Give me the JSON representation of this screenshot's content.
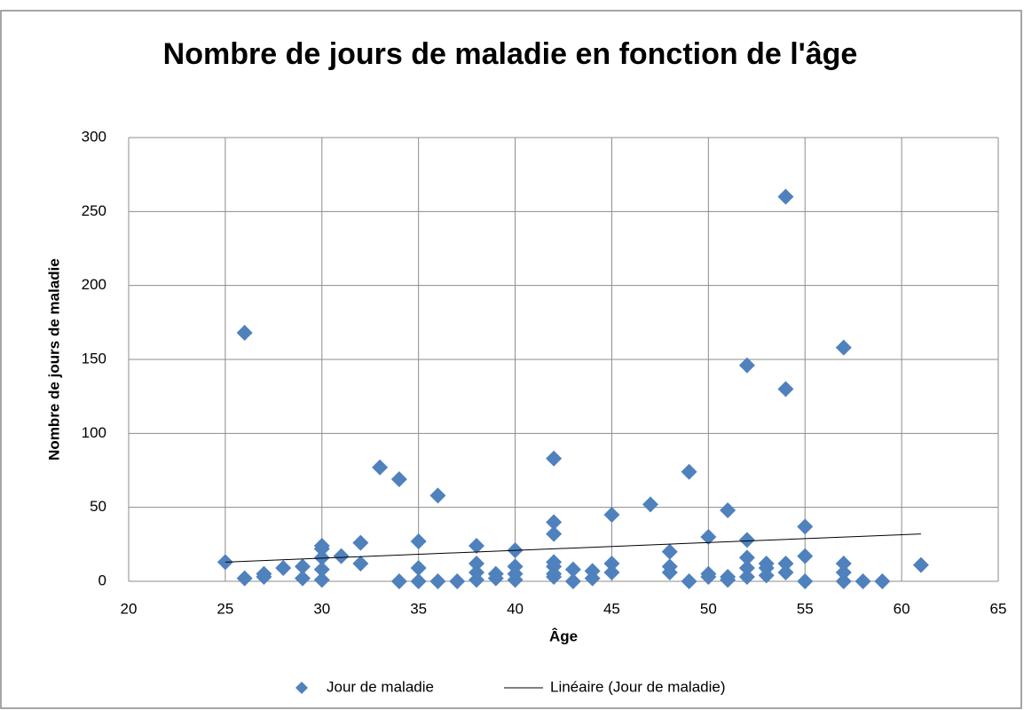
{
  "chart_data": {
    "type": "scatter",
    "title": "Nombre de jours de maladie en fonction de l'âge",
    "x_label": "Âge",
    "y_label": "Nombre de jours de maladie",
    "xlim": [
      20,
      65
    ],
    "xticks": [
      20,
      25,
      30,
      35,
      40,
      45,
      50,
      55,
      60,
      65
    ],
    "ylim": [
      0,
      300
    ],
    "yticks": [
      0,
      50,
      100,
      150,
      200,
      250,
      300
    ],
    "grid": true,
    "legend": "bottom",
    "series": [
      {
        "name": "Jour de maladie",
        "color": "#4f81bd",
        "x": [
          25,
          26,
          26,
          27,
          27,
          28,
          29,
          29,
          30,
          30,
          30,
          30,
          30,
          31,
          32,
          32,
          33,
          34,
          34,
          35,
          35,
          35,
          36,
          36,
          37,
          38,
          38,
          38,
          38,
          39,
          39,
          40,
          40,
          40,
          40,
          42,
          42,
          42,
          42,
          42,
          42,
          42,
          43,
          43,
          44,
          44,
          45,
          45,
          45,
          47,
          48,
          48,
          48,
          49,
          49,
          50,
          50,
          50,
          51,
          51,
          51,
          52,
          52,
          52,
          52,
          52,
          53,
          53,
          53,
          54,
          54,
          54,
          54,
          55,
          55,
          55,
          57,
          57,
          57,
          57,
          58,
          59,
          61
        ],
        "values": [
          13,
          168,
          2,
          5,
          3,
          9,
          10,
          2,
          24,
          22,
          16,
          8,
          1,
          17,
          26,
          12,
          77,
          69,
          0,
          27,
          9,
          0,
          58,
          0,
          0,
          24,
          12,
          6,
          1,
          5,
          2,
          21,
          10,
          5,
          1,
          83,
          40,
          32,
          13,
          10,
          5,
          3,
          8,
          0,
          7,
          2,
          45,
          12,
          6,
          52,
          20,
          10,
          6,
          74,
          0,
          30,
          5,
          3,
          48,
          3,
          1,
          146,
          28,
          16,
          9,
          3,
          12,
          9,
          4,
          260,
          130,
          12,
          6,
          37,
          17,
          0,
          158,
          12,
          6,
          0,
          0,
          0,
          11
        ]
      }
    ],
    "trendline": {
      "name": "Linéaire (Jour de maladie)",
      "color": "#000000",
      "x": [
        25,
        61
      ],
      "values": [
        13,
        32
      ]
    }
  }
}
